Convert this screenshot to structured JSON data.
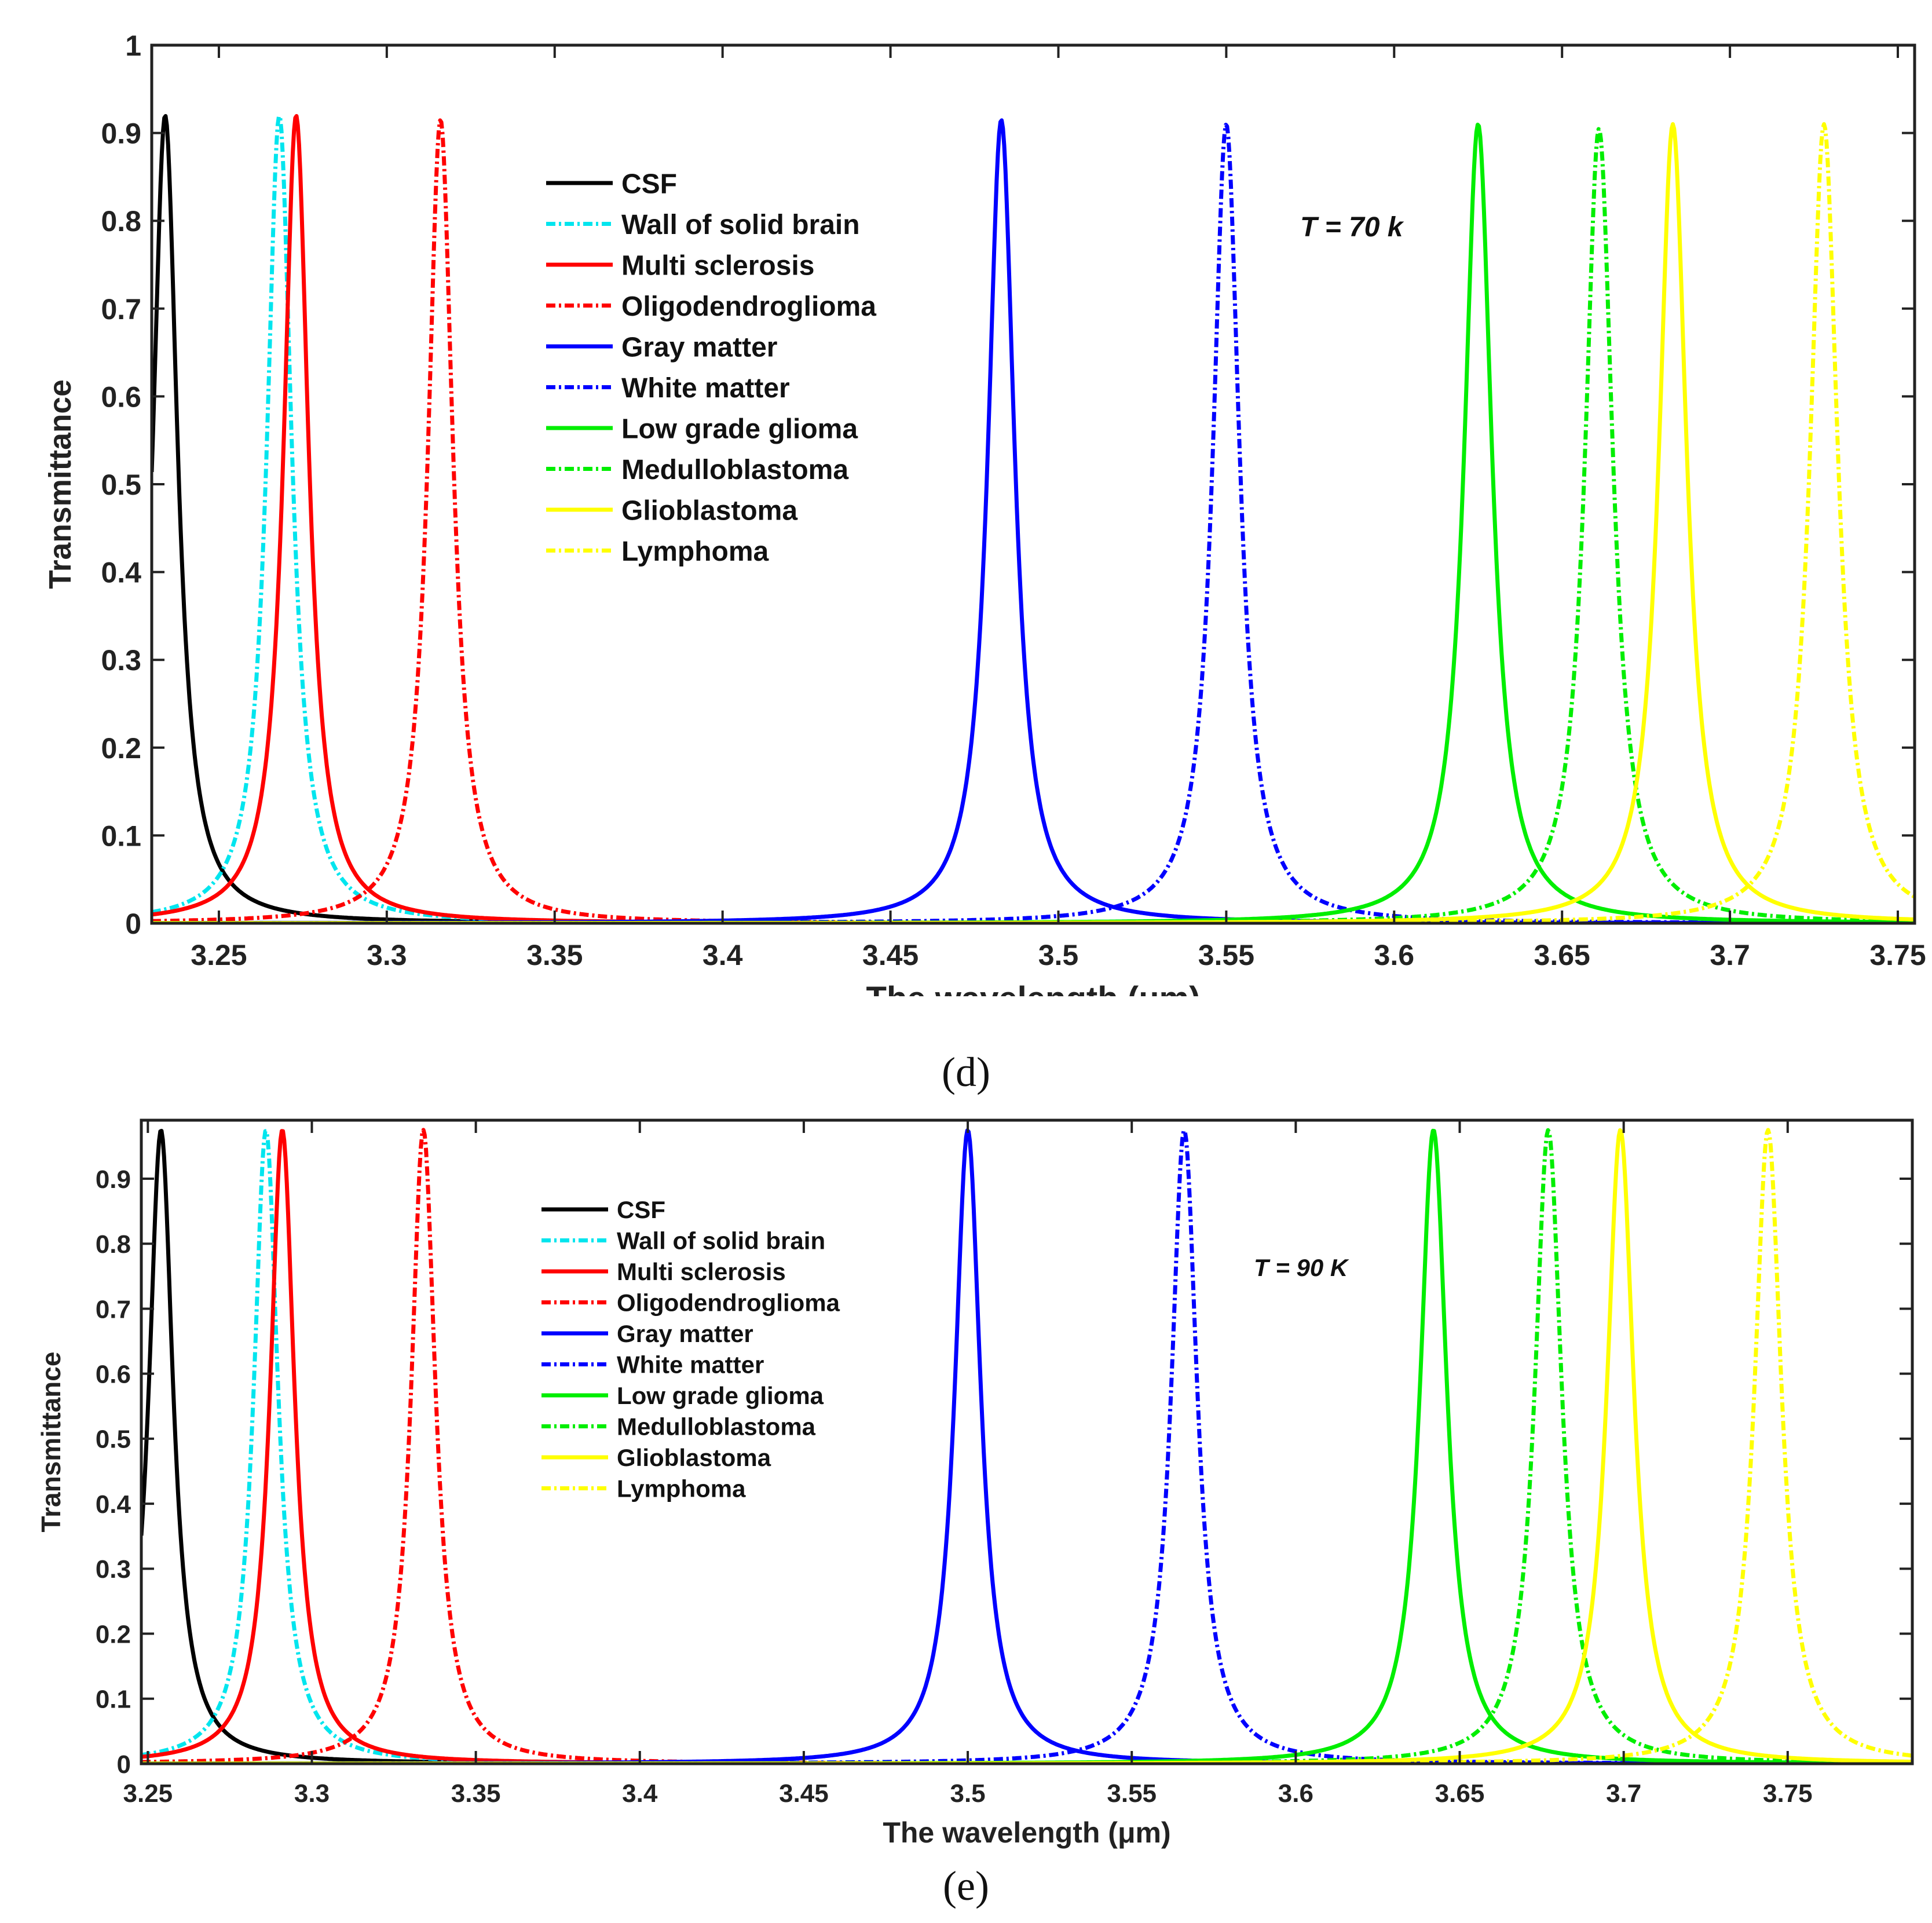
{
  "chart_data": [
    {
      "type": "line",
      "panel": "d",
      "caption": "(d)",
      "title": "",
      "xlabel": "The wavelength (μm)",
      "ylabel": "Transmittance",
      "xlim": [
        3.23,
        3.755
      ],
      "ylim": [
        0,
        1
      ],
      "xticks": [
        3.25,
        3.3,
        3.35,
        3.4,
        3.45,
        3.5,
        3.55,
        3.6,
        3.65,
        3.7,
        3.75
      ],
      "xtick_labels": [
        "3.25",
        "3.3",
        "3.35",
        "3.4",
        "3.45",
        "3.5",
        "3.55",
        "3.6",
        "3.65",
        "3.7",
        "3.75"
      ],
      "yticks": [
        0,
        0.1,
        0.2,
        0.3,
        0.4,
        0.5,
        0.6,
        0.7,
        0.8,
        0.9,
        1
      ],
      "ytick_labels": [
        "0",
        "0.1",
        "0.2",
        "0.3",
        "0.4",
        "0.5",
        "0.6",
        "0.7",
        "0.8",
        "0.9",
        "1"
      ],
      "annotation": "T = 70 k",
      "legend_location": "upper-left-center",
      "series": [
        {
          "name": "CSF",
          "peak_x": 3.234,
          "peak_y": 0.92,
          "half_width": 0.0045,
          "color": "#000000",
          "style": "solid"
        },
        {
          "name": "Wall of solid brain",
          "peak_x": 3.268,
          "peak_y": 0.92,
          "half_width": 0.0045,
          "color": "#00e5ee",
          "style": "dashdot"
        },
        {
          "name": "Multi sclerosis",
          "peak_x": 3.273,
          "peak_y": 0.92,
          "half_width": 0.0045,
          "color": "#ff0000",
          "style": "solid"
        },
        {
          "name": "Oligodendroglioma",
          "peak_x": 3.316,
          "peak_y": 0.915,
          "half_width": 0.0045,
          "color": "#ff0000",
          "style": "dashdot"
        },
        {
          "name": "Gray matter",
          "peak_x": 3.483,
          "peak_y": 0.915,
          "half_width": 0.0048,
          "color": "#0000ff",
          "style": "solid"
        },
        {
          "name": "White matter",
          "peak_x": 3.55,
          "peak_y": 0.91,
          "half_width": 0.0048,
          "color": "#0000ff",
          "style": "dashdot"
        },
        {
          "name": "Low grade glioma",
          "peak_x": 3.625,
          "peak_y": 0.91,
          "half_width": 0.005,
          "color": "#00ee00",
          "style": "solid"
        },
        {
          "name": "Medulloblastoma",
          "peak_x": 3.661,
          "peak_y": 0.905,
          "half_width": 0.005,
          "color": "#00ee00",
          "style": "dashdot"
        },
        {
          "name": "Glioblastoma",
          "peak_x": 3.683,
          "peak_y": 0.91,
          "half_width": 0.005,
          "color": "#ffff00",
          "style": "solid"
        },
        {
          "name": "Lymphoma",
          "peak_x": 3.728,
          "peak_y": 0.91,
          "half_width": 0.005,
          "color": "#ffff00",
          "style": "dashdot"
        }
      ]
    },
    {
      "type": "line",
      "panel": "e",
      "caption": "(e)",
      "title": "",
      "xlabel": "The wavelength (μm)",
      "ylabel": "Transmittance",
      "xlim": [
        3.248,
        3.788
      ],
      "ylim": [
        0,
        0.99
      ],
      "xticks": [
        3.25,
        3.3,
        3.35,
        3.4,
        3.45,
        3.5,
        3.55,
        3.6,
        3.65,
        3.7,
        3.75
      ],
      "xtick_labels": [
        "3.25",
        "3.3",
        "3.35",
        "3.4",
        "3.45",
        "3.5",
        "3.55",
        "3.6",
        "3.65",
        "3.7",
        "3.75"
      ],
      "yticks": [
        0,
        0.1,
        0.2,
        0.3,
        0.4,
        0.5,
        0.6,
        0.7,
        0.8,
        0.9
      ],
      "ytick_labels": [
        "0",
        "0.1",
        "0.2",
        "0.3",
        "0.4",
        "0.5",
        "0.6",
        "0.7",
        "0.8",
        "0.9"
      ],
      "annotation": "T = 90 K",
      "legend_location": "upper-left-center",
      "series": [
        {
          "name": "CSF",
          "peak_x": 3.254,
          "peak_y": 0.975,
          "half_width": 0.0045,
          "color": "#000000",
          "style": "solid"
        },
        {
          "name": "Wall of solid brain",
          "peak_x": 3.286,
          "peak_y": 0.975,
          "half_width": 0.0045,
          "color": "#00e5ee",
          "style": "dashdot"
        },
        {
          "name": "Multi sclerosis",
          "peak_x": 3.291,
          "peak_y": 0.975,
          "half_width": 0.0045,
          "color": "#ff0000",
          "style": "solid"
        },
        {
          "name": "Oligodendroglioma",
          "peak_x": 3.334,
          "peak_y": 0.975,
          "half_width": 0.0045,
          "color": "#ff0000",
          "style": "dashdot"
        },
        {
          "name": "Gray matter",
          "peak_x": 3.5,
          "peak_y": 0.975,
          "half_width": 0.0048,
          "color": "#0000ff",
          "style": "solid"
        },
        {
          "name": "White matter",
          "peak_x": 3.566,
          "peak_y": 0.975,
          "half_width": 0.0048,
          "color": "#0000ff",
          "style": "dashdot"
        },
        {
          "name": "Low grade glioma",
          "peak_x": 3.642,
          "peak_y": 0.975,
          "half_width": 0.005,
          "color": "#00ee00",
          "style": "solid"
        },
        {
          "name": "Medulloblastoma",
          "peak_x": 3.677,
          "peak_y": 0.975,
          "half_width": 0.005,
          "color": "#00ee00",
          "style": "dashdot"
        },
        {
          "name": "Glioblastoma",
          "peak_x": 3.699,
          "peak_y": 0.975,
          "half_width": 0.005,
          "color": "#ffff00",
          "style": "solid"
        },
        {
          "name": "Lymphoma",
          "peak_x": 3.744,
          "peak_y": 0.975,
          "half_width": 0.005,
          "color": "#ffff00",
          "style": "dashdot"
        }
      ]
    }
  ]
}
